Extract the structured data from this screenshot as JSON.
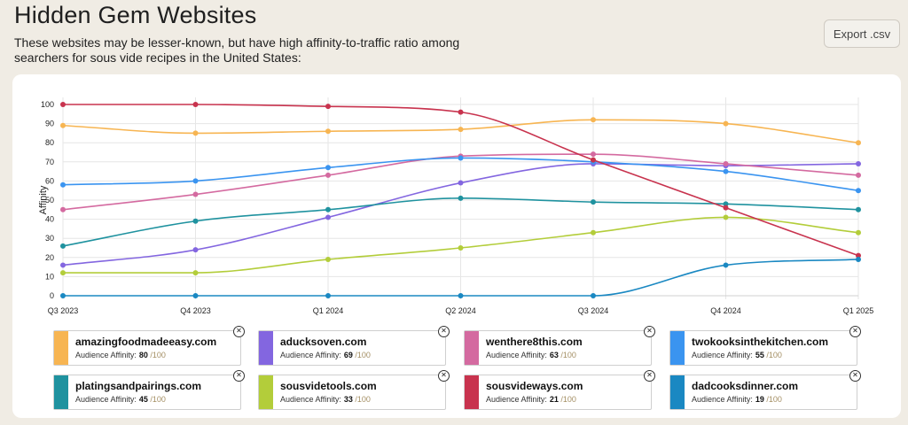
{
  "header": {
    "title": "Hidden Gem Websites",
    "subtitle": "These websites may be lesser-known, but have high affinity-to-traffic ratio among searchers for sous vide recipes in the United States:",
    "export_label": "Export .csv"
  },
  "chart_data": {
    "type": "line",
    "ylabel": "Affinity",
    "ylim": [
      0,
      100
    ],
    "yticks": [
      0,
      10,
      20,
      30,
      40,
      50,
      60,
      70,
      80,
      90,
      100
    ],
    "categories": [
      "Q3 2023",
      "Q4 2023",
      "Q1 2024",
      "Q2 2024",
      "Q3 2024",
      "Q4 2024",
      "Q1 2025"
    ],
    "grid": true,
    "series": [
      {
        "name": "amazingfoodmadeeasy.com",
        "color": "#f7b552",
        "values": [
          89,
          85,
          86,
          87,
          92,
          90,
          80
        ]
      },
      {
        "name": "aducksoven.com",
        "color": "#8366e0",
        "values": [
          16,
          24,
          41,
          59,
          69,
          68,
          69
        ]
      },
      {
        "name": "wenthere8this.com",
        "color": "#d46aa0",
        "values": [
          45,
          53,
          63,
          73,
          74,
          69,
          63
        ]
      },
      {
        "name": "twokooksinthekitchen.com",
        "color": "#3a94f0",
        "values": [
          58,
          60,
          67,
          72,
          70,
          65,
          55
        ]
      },
      {
        "name": "platingsandpairings.com",
        "color": "#1f929f",
        "values": [
          26,
          39,
          45,
          51,
          49,
          48,
          45
        ]
      },
      {
        "name": "sousvidetools.com",
        "color": "#b3cd3a",
        "values": [
          12,
          12,
          19,
          25,
          33,
          41,
          33
        ]
      },
      {
        "name": "sousvideways.com",
        "color": "#c8334e",
        "values": [
          100,
          100,
          99,
          96,
          71,
          46,
          21
        ]
      },
      {
        "name": "dadcooksdinner.com",
        "color": "#1a88c2",
        "values": [
          0,
          0,
          0,
          0,
          0,
          16,
          19
        ]
      }
    ]
  },
  "legend": {
    "affinity_label": "Audience Affinity:",
    "max_label": "/100",
    "items": [
      {
        "name": "amazingfoodmadeeasy.com",
        "value": "80",
        "color": "#f7b552"
      },
      {
        "name": "aducksoven.com",
        "value": "69",
        "color": "#8366e0"
      },
      {
        "name": "wenthere8this.com",
        "value": "63",
        "color": "#d46aa0"
      },
      {
        "name": "twokooksinthekitchen.com",
        "value": "55",
        "color": "#3a94f0"
      },
      {
        "name": "platingsandpairings.com",
        "value": "45",
        "color": "#1f929f"
      },
      {
        "name": "sousvidetools.com",
        "value": "33",
        "color": "#b3cd3a"
      },
      {
        "name": "sousvideways.com",
        "value": "21",
        "color": "#c8334e"
      },
      {
        "name": "dadcooksdinner.com",
        "value": "19",
        "color": "#1a88c2"
      }
    ]
  },
  "close_icon_glyph": "✕"
}
